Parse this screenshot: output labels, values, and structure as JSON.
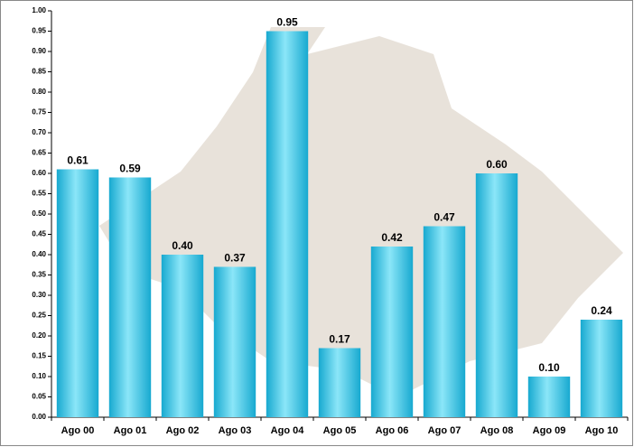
{
  "chart_data": {
    "type": "bar",
    "categories": [
      "Ago 00",
      "Ago 01",
      "Ago 02",
      "Ago 03",
      "Ago 04",
      "Ago 05",
      "Ago 06",
      "Ago 07",
      "Ago 08",
      "Ago 09",
      "Ago 10"
    ],
    "values": [
      0.61,
      0.59,
      0.4,
      0.37,
      0.95,
      0.17,
      0.42,
      0.47,
      0.6,
      0.1,
      0.24
    ],
    "value_labels": [
      "0.61",
      "0.59",
      "0.40",
      "0.37",
      "0.95",
      "0.17",
      "0.42",
      "0.47",
      "0.60",
      "0.10",
      "0.24"
    ],
    "color": "#17a9d0",
    "ylim": [
      0,
      1
    ],
    "yticks": [
      {
        "value": 0,
        "label": "0.00"
      },
      {
        "value": 0.05,
        "label": "0.05"
      },
      {
        "value": 0.1,
        "label": "0.10"
      },
      {
        "value": 0.15,
        "label": "0.15"
      },
      {
        "value": 0.2,
        "label": "0.20"
      },
      {
        "value": 0.25,
        "label": "0.25"
      },
      {
        "value": 0.3,
        "label": "0.30"
      },
      {
        "value": 0.35,
        "label": "0.35"
      },
      {
        "value": 0.4,
        "label": "0.40"
      },
      {
        "value": 0.45,
        "label": "0.45"
      },
      {
        "value": 0.5,
        "label": "0.50"
      },
      {
        "value": 0.55,
        "label": "0.55"
      },
      {
        "value": 0.6,
        "label": "0.60"
      },
      {
        "value": 0.65,
        "label": "0.65"
      },
      {
        "value": 0.7,
        "label": "0.70"
      },
      {
        "value": 0.75,
        "label": "0.75"
      },
      {
        "value": 0.8,
        "label": "0.80"
      },
      {
        "value": 0.85,
        "label": "0.85"
      },
      {
        "value": 0.9,
        "label": "0.90"
      },
      {
        "value": 0.95,
        "label": "0.95"
      },
      {
        "value": 1,
        "label": "1.00"
      }
    ],
    "grid": false
  }
}
